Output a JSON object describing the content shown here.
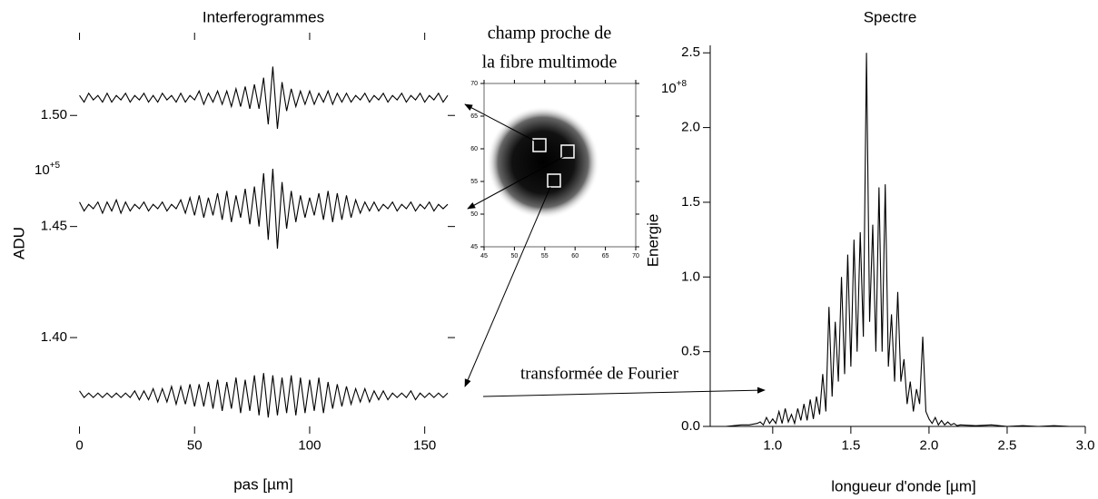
{
  "chart_data": [
    {
      "type": "line",
      "title": "Interferogrammes",
      "xlabel": "pas [µm]",
      "ylabel": "ADU",
      "axis_multiplier": {
        "base": "10",
        "exponent": "+5"
      },
      "xlim": [
        -1,
        160
      ],
      "ylim": [
        1.36,
        1.534
      ],
      "xticks": [
        0,
        50,
        100,
        150
      ],
      "yticks": [
        {
          "value": 1.4,
          "label": "1.40"
        },
        1.45,
        {
          "value": 1.5,
          "label": "1.50"
        }
      ],
      "x": [
        0,
        2,
        4,
        6,
        8,
        10,
        12,
        14,
        16,
        18,
        20,
        22,
        24,
        26,
        28,
        30,
        32,
        34,
        36,
        38,
        40,
        42,
        44,
        46,
        48,
        50,
        52,
        54,
        56,
        58,
        60,
        62,
        64,
        66,
        68,
        70,
        72,
        74,
        76,
        78,
        80,
        82,
        84,
        86,
        88,
        90,
        92,
        94,
        96,
        98,
        100,
        102,
        104,
        106,
        108,
        110,
        112,
        114,
        116,
        118,
        120,
        122,
        124,
        126,
        128,
        130,
        132,
        134,
        136,
        138,
        140,
        142,
        144,
        146,
        148,
        150,
        152,
        154,
        156,
        158,
        160
      ],
      "series": [
        {
          "color": "#000000",
          "values": [
            1.509,
            1.506,
            1.51,
            1.507,
            1.509,
            1.506,
            1.51,
            1.506,
            1.509,
            1.507,
            1.51,
            1.506,
            1.509,
            1.507,
            1.51,
            1.506,
            1.509,
            1.506,
            1.51,
            1.507,
            1.509,
            1.506,
            1.51,
            1.506,
            1.509,
            1.507,
            1.511,
            1.505,
            1.51,
            1.506,
            1.511,
            1.505,
            1.511,
            1.504,
            1.512,
            1.504,
            1.513,
            1.503,
            1.514,
            1.503,
            1.517,
            1.496,
            1.522,
            1.494,
            1.515,
            1.502,
            1.512,
            1.504,
            1.511,
            1.505,
            1.511,
            1.505,
            1.51,
            1.506,
            1.511,
            1.505,
            1.51,
            1.506,
            1.51,
            1.506,
            1.509,
            1.507,
            1.51,
            1.506,
            1.509,
            1.507,
            1.51,
            1.506,
            1.509,
            1.507,
            1.51,
            1.506,
            1.509,
            1.507,
            1.51,
            1.506,
            1.509,
            1.507,
            1.51,
            1.506,
            1.509
          ]
        },
        {
          "color": "#000000",
          "values": [
            1.461,
            1.457,
            1.46,
            1.458,
            1.461,
            1.456,
            1.461,
            1.457,
            1.462,
            1.456,
            1.461,
            1.457,
            1.46,
            1.458,
            1.461,
            1.457,
            1.46,
            1.458,
            1.461,
            1.457,
            1.46,
            1.458,
            1.462,
            1.456,
            1.463,
            1.455,
            1.464,
            1.454,
            1.463,
            1.455,
            1.465,
            1.453,
            1.466,
            1.452,
            1.464,
            1.454,
            1.467,
            1.451,
            1.468,
            1.45,
            1.474,
            1.444,
            1.476,
            1.44,
            1.47,
            1.449,
            1.466,
            1.452,
            1.464,
            1.454,
            1.463,
            1.455,
            1.465,
            1.453,
            1.466,
            1.452,
            1.465,
            1.453,
            1.464,
            1.454,
            1.462,
            1.456,
            1.461,
            1.457,
            1.461,
            1.457,
            1.46,
            1.458,
            1.461,
            1.457,
            1.46,
            1.458,
            1.461,
            1.457,
            1.46,
            1.458,
            1.461,
            1.457,
            1.46,
            1.458,
            1.46
          ]
        },
        {
          "color": "#000000",
          "values": [
            1.376,
            1.373,
            1.375,
            1.373,
            1.375,
            1.373,
            1.375,
            1.373,
            1.375,
            1.373,
            1.375,
            1.373,
            1.376,
            1.372,
            1.376,
            1.372,
            1.377,
            1.371,
            1.377,
            1.371,
            1.378,
            1.37,
            1.378,
            1.37,
            1.379,
            1.369,
            1.379,
            1.369,
            1.38,
            1.368,
            1.381,
            1.367,
            1.38,
            1.368,
            1.382,
            1.366,
            1.381,
            1.367,
            1.383,
            1.365,
            1.384,
            1.364,
            1.383,
            1.365,
            1.382,
            1.366,
            1.383,
            1.365,
            1.382,
            1.366,
            1.381,
            1.367,
            1.382,
            1.366,
            1.38,
            1.368,
            1.379,
            1.369,
            1.378,
            1.37,
            1.377,
            1.371,
            1.377,
            1.371,
            1.376,
            1.372,
            1.376,
            1.372,
            1.375,
            1.373,
            1.375,
            1.373,
            1.376,
            1.372,
            1.375,
            1.373,
            1.375,
            1.373,
            1.375,
            1.373,
            1.375
          ]
        }
      ]
    },
    {
      "type": "image",
      "xlim": [
        45,
        70
      ],
      "ylim": [
        45,
        70
      ],
      "xticks": [
        45,
        50,
        55,
        60,
        65,
        70
      ],
      "yticks": [
        45,
        50,
        55,
        60,
        65,
        70
      ]
    },
    {
      "type": "line",
      "title": "Spectre",
      "xlabel": "longueur d'onde [µm]",
      "ylabel": "Energie",
      "axis_multiplier": {
        "base": "10",
        "exponent": "+8"
      },
      "xlim": [
        0.6,
        3.0
      ],
      "ylim": [
        0,
        2.55
      ],
      "xticks": [
        {
          "value": 1,
          "label": "1.0"
        },
        1.5,
        {
          "value": 2,
          "label": "2.0"
        },
        2.5,
        {
          "value": 3,
          "label": "3.0"
        }
      ],
      "yticks": [
        {
          "value": 0,
          "label": "0.0"
        },
        0.5,
        {
          "value": 1,
          "label": "1.0"
        },
        1.5,
        {
          "value": 2,
          "label": "2.0"
        },
        2.5
      ],
      "x": [
        0.6,
        0.7,
        0.8,
        0.85,
        0.9,
        0.92,
        0.94,
        0.96,
        0.98,
        1.0,
        1.02,
        1.04,
        1.06,
        1.08,
        1.1,
        1.12,
        1.14,
        1.16,
        1.18,
        1.2,
        1.22,
        1.24,
        1.26,
        1.28,
        1.3,
        1.32,
        1.34,
        1.36,
        1.38,
        1.4,
        1.42,
        1.44,
        1.46,
        1.48,
        1.5,
        1.52,
        1.54,
        1.56,
        1.58,
        1.6,
        1.62,
        1.64,
        1.66,
        1.68,
        1.7,
        1.72,
        1.74,
        1.76,
        1.78,
        1.8,
        1.82,
        1.84,
        1.86,
        1.88,
        1.9,
        1.92,
        1.94,
        1.96,
        1.98,
        2.0,
        2.02,
        2.04,
        2.06,
        2.08,
        2.1,
        2.12,
        2.14,
        2.16,
        2.18,
        2.2,
        2.3,
        2.4,
        2.5,
        2.6,
        2.7,
        2.8,
        2.9,
        3.0
      ],
      "series": [
        {
          "color": "#000000",
          "values": [
            0,
            0,
            0.01,
            0.01,
            0.02,
            0.03,
            0.01,
            0.06,
            0.02,
            0.05,
            0.02,
            0.1,
            0.02,
            0.12,
            0.03,
            0.08,
            0.02,
            0.12,
            0.04,
            0.15,
            0.04,
            0.18,
            0.05,
            0.2,
            0.08,
            0.35,
            0.1,
            0.8,
            0.2,
            0.7,
            0.3,
            1.0,
            0.35,
            1.15,
            0.4,
            1.25,
            0.5,
            1.3,
            0.6,
            2.5,
            0.7,
            1.35,
            0.5,
            1.6,
            0.5,
            1.62,
            0.4,
            0.75,
            0.3,
            0.9,
            0.3,
            0.45,
            0.15,
            0.3,
            0.1,
            0.25,
            0.15,
            0.6,
            0.1,
            0.05,
            0.02,
            0.06,
            0.01,
            0.04,
            0.01,
            0.03,
            0.01,
            0.02,
            0.005,
            0.01,
            0.005,
            0.01,
            0,
            0.005,
            0,
            0.005,
            0,
            0
          ]
        }
      ]
    }
  ],
  "annotations": {
    "near_field": [
      "champ proche de",
      "la fibre multimode"
    ],
    "fourier": "transformée de Fourier"
  }
}
